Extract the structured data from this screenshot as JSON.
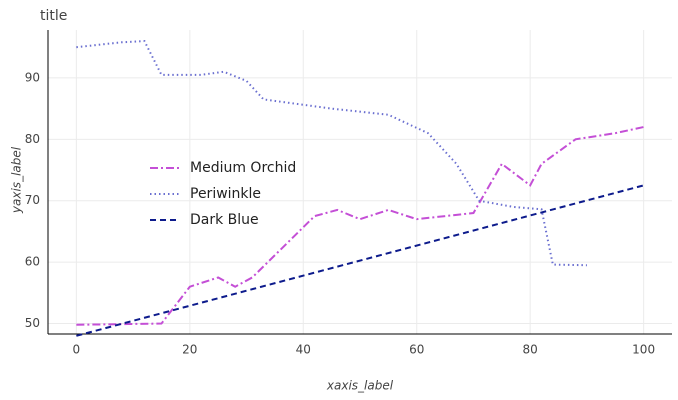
{
  "chart_data": {
    "type": "line",
    "title": "title",
    "x_label": "xaxis_label",
    "y_label": "yaxis_label",
    "xlim": [
      -5,
      105
    ],
    "ylim": [
      48.3,
      97.8
    ],
    "xticks": [
      0,
      20,
      40,
      60,
      80,
      100
    ],
    "yticks": [
      50,
      60,
      70,
      80,
      90
    ],
    "grid": true,
    "legend": "left",
    "series": [
      {
        "name": "Medium Orchid",
        "color": "#c44fd6",
        "dash": "dashdot",
        "x": [
          0,
          15,
          20,
          25,
          28,
          31,
          42,
          46,
          50,
          55,
          60,
          70,
          75,
          80,
          82,
          88,
          95,
          100
        ],
        "values": [
          49.8,
          50,
          56,
          57.5,
          56,
          57.5,
          67.5,
          68.5,
          67,
          68.5,
          67,
          68,
          76,
          72.5,
          76,
          80,
          81,
          82
        ]
      },
      {
        "name": "Periwinkle",
        "color": "#6a6fd0",
        "dash": "dot",
        "x": [
          0,
          8,
          12,
          15,
          22,
          26,
          30,
          33,
          45,
          55,
          62,
          67,
          71,
          77,
          82,
          84,
          90
        ],
        "values": [
          95,
          95.8,
          96,
          90.5,
          90.5,
          91,
          89.5,
          86.5,
          85,
          84,
          81,
          76,
          70,
          69,
          68.6,
          59.6,
          59.5
        ]
      },
      {
        "name": "Dark Blue",
        "color": "#0d1b8c",
        "dash": "dash",
        "x": [
          0,
          100
        ],
        "values": [
          48,
          72.5
        ]
      }
    ]
  }
}
